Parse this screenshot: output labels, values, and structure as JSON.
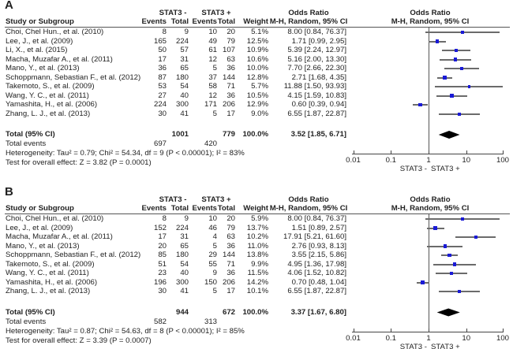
{
  "chart_data": [
    {
      "type": "forest",
      "panel_label": "A",
      "headers": {
        "group1": "STAT3 -",
        "group2": "STAT3 +",
        "study": "Study or Subgroup",
        "events": "Events",
        "total": "Total",
        "weight": "Weight",
        "or_title": "Odds Ratio",
        "or_method": "M-H, Random, 95% CI"
      },
      "rows": [
        {
          "study": "Choi, Chel Hun., et al. (2010)",
          "e1": "8",
          "t1": "9",
          "e2": "10",
          "t2": "20",
          "weight": "5.1%",
          "or_text": "8.00 [0.84, 76.37]",
          "or": 8.0,
          "lo": 0.84,
          "hi": 76.37,
          "w": 5.1
        },
        {
          "study": "Lee, J., et al. (2009)",
          "e1": "165",
          "t1": "224",
          "e2": "49",
          "t2": "79",
          "weight": "12.5%",
          "or_text": "1.71 [0.99, 2.95]",
          "or": 1.71,
          "lo": 0.99,
          "hi": 2.95,
          "w": 12.5
        },
        {
          "study": "Li, X., et al. (2015)",
          "e1": "50",
          "t1": "57",
          "e2": "61",
          "t2": "107",
          "weight": "10.9%",
          "or_text": "5.39 [2.24, 12.97]",
          "or": 5.39,
          "lo": 2.24,
          "hi": 12.97,
          "w": 10.9
        },
        {
          "study": "Macha, Muzafar A., et al. (2011)",
          "e1": "17",
          "t1": "31",
          "e2": "12",
          "t2": "63",
          "weight": "10.6%",
          "or_text": "5.16 [2.00, 13.30]",
          "or": 5.16,
          "lo": 2.0,
          "hi": 13.3,
          "w": 10.6
        },
        {
          "study": "Mano, Y., et al. (2013)",
          "e1": "36",
          "t1": "65",
          "e2": "5",
          "t2": "36",
          "weight": "10.0%",
          "or_text": "7.70 [2.66, 22.30]",
          "or": 7.7,
          "lo": 2.66,
          "hi": 22.3,
          "w": 10.0
        },
        {
          "study": "Schoppmann, Sebastian F., et al. (2012)",
          "e1": "87",
          "t1": "180",
          "e2": "37",
          "t2": "144",
          "weight": "12.8%",
          "or_text": "2.71 [1.68, 4.35]",
          "or": 2.71,
          "lo": 1.68,
          "hi": 4.35,
          "w": 12.8
        },
        {
          "study": "Takemoto, S., et al. (2009)",
          "e1": "53",
          "t1": "54",
          "e2": "58",
          "t2": "71",
          "weight": "5.7%",
          "or_text": "11.88 [1.50, 93.93]",
          "or": 11.88,
          "lo": 1.5,
          "hi": 93.93,
          "w": 5.7
        },
        {
          "study": "Wang, Y. C., et al. (2011)",
          "e1": "27",
          "t1": "40",
          "e2": "12",
          "t2": "36",
          "weight": "10.5%",
          "or_text": "4.15 [1.59, 10.83]",
          "or": 4.15,
          "lo": 1.59,
          "hi": 10.83,
          "w": 10.5
        },
        {
          "study": "Yamashita, H., et al. (2006)",
          "e1": "224",
          "t1": "300",
          "e2": "171",
          "t2": "206",
          "weight": "12.9%",
          "or_text": "0.60 [0.39, 0.94]",
          "or": 0.6,
          "lo": 0.39,
          "hi": 0.94,
          "w": 12.9
        },
        {
          "study": "Zhang, L. J., et al. (2013)",
          "e1": "30",
          "t1": "41",
          "e2": "5",
          "t2": "17",
          "weight": "9.0%",
          "or_text": "6.55 [1.87, 22.87]",
          "or": 6.55,
          "lo": 1.87,
          "hi": 22.87,
          "w": 9.0
        }
      ],
      "total": {
        "label": "Total (95% CI)",
        "t1": "1001",
        "t2": "779",
        "weight": "100.0%",
        "or_text": "3.52 [1.85, 6.71]",
        "or": 3.52,
        "lo": 1.85,
        "hi": 6.71
      },
      "total_events": {
        "label": "Total events",
        "e1": "697",
        "e2": "420"
      },
      "heterogeneity": "Heterogeneity: Tau² = 0.79; Chi² = 54.34, df = 9 (P < 0.00001); I² = 83%",
      "overall_effect": "Test for overall effect: Z = 3.82 (P = 0.0001)",
      "axis": {
        "scale": "log",
        "ticks": [
          0.01,
          0.1,
          1,
          10,
          100
        ],
        "tick_labels": [
          "0.01",
          "0.1",
          "1",
          "10",
          "100"
        ],
        "xlim": [
          0.01,
          100
        ],
        "favours_left": "STAT3 -",
        "favours_right": "STAT3 +"
      }
    },
    {
      "type": "forest",
      "panel_label": "B",
      "headers": {
        "group1": "STAT3 -",
        "group2": "STAT3 +",
        "study": "Study or Subgroup",
        "events": "Events",
        "total": "Total",
        "weight": "Weight",
        "or_title": "Odds Ratio",
        "or_method": "M-H, Random, 95% CI"
      },
      "rows": [
        {
          "study": "Choi, Chel Hun., et al. (2010)",
          "e1": "8",
          "t1": "9",
          "e2": "10",
          "t2": "20",
          "weight": "5.9%",
          "or_text": "8.00 [0.84, 76.37]",
          "or": 8.0,
          "lo": 0.84,
          "hi": 76.37,
          "w": 5.9
        },
        {
          "study": "Lee, J., et al. (2009)",
          "e1": "152",
          "t1": "224",
          "e2": "46",
          "t2": "79",
          "weight": "13.7%",
          "or_text": "1.51 [0.89, 2.57]",
          "or": 1.51,
          "lo": 0.89,
          "hi": 2.57,
          "w": 13.7
        },
        {
          "study": "Macha, Muzafar A., et al. (2011)",
          "e1": "17",
          "t1": "31",
          "e2": "4",
          "t2": "63",
          "weight": "10.2%",
          "or_text": "17.91 [5.21, 61.60]",
          "or": 17.91,
          "lo": 5.21,
          "hi": 61.6,
          "w": 10.2
        },
        {
          "study": "Mano, Y., et al. (2013)",
          "e1": "20",
          "t1": "65",
          "e2": "5",
          "t2": "36",
          "weight": "11.0%",
          "or_text": "2.76 [0.93, 8.13]",
          "or": 2.76,
          "lo": 0.93,
          "hi": 8.13,
          "w": 11.0
        },
        {
          "study": "Schoppmann, Sebastian F., et al. (2012)",
          "e1": "85",
          "t1": "180",
          "e2": "29",
          "t2": "144",
          "weight": "13.8%",
          "or_text": "3.55 [2.15, 5.86]",
          "or": 3.55,
          "lo": 2.15,
          "hi": 5.86,
          "w": 13.8
        },
        {
          "study": "Takemoto, S., et al. (2009)",
          "e1": "51",
          "t1": "54",
          "e2": "55",
          "t2": "71",
          "weight": "9.9%",
          "or_text": "4.95 [1.36, 17.98]",
          "or": 4.95,
          "lo": 1.36,
          "hi": 17.98,
          "w": 9.9
        },
        {
          "study": "Wang, Y. C., et al. (2011)",
          "e1": "23",
          "t1": "40",
          "e2": "9",
          "t2": "36",
          "weight": "11.5%",
          "or_text": "4.06 [1.52, 10.82]",
          "or": 4.06,
          "lo": 1.52,
          "hi": 10.82,
          "w": 11.5
        },
        {
          "study": "Yamashita, H., et al. (2006)",
          "e1": "196",
          "t1": "300",
          "e2": "150",
          "t2": "206",
          "weight": "14.2%",
          "or_text": "0.70 [0.48, 1.04]",
          "or": 0.7,
          "lo": 0.48,
          "hi": 1.04,
          "w": 14.2
        },
        {
          "study": "Zhang, L. J., et al. (2013)",
          "e1": "30",
          "t1": "41",
          "e2": "5",
          "t2": "17",
          "weight": "10.1%",
          "or_text": "6.55 [1.87, 22.87]",
          "or": 6.55,
          "lo": 1.87,
          "hi": 22.87,
          "w": 10.1
        }
      ],
      "total": {
        "label": "Total (95% CI)",
        "t1": "944",
        "t2": "672",
        "weight": "100.0%",
        "or_text": "3.37 [1.67, 6.80]",
        "or": 3.37,
        "lo": 1.67,
        "hi": 6.8
      },
      "total_events": {
        "label": "Total events",
        "e1": "582",
        "e2": "313"
      },
      "heterogeneity": "Heterogeneity: Tau² = 0.87; Chi² = 54.63, df = 8 (P < 0.00001); I² = 85%",
      "overall_effect": "Test for overall effect: Z = 3.39 (P = 0.0007)",
      "axis": {
        "scale": "log",
        "ticks": [
          0.01,
          0.1,
          1,
          10,
          100
        ],
        "tick_labels": [
          "0.01",
          "0.1",
          "1",
          "10",
          "100"
        ],
        "xlim": [
          0.01,
          100
        ],
        "favours_left": "STAT3 -",
        "favours_right": "STAT3 +"
      }
    }
  ],
  "colors": {
    "square": "#1a1ad6",
    "ci_line": "#6b6b6b",
    "diamond": "#000000"
  }
}
